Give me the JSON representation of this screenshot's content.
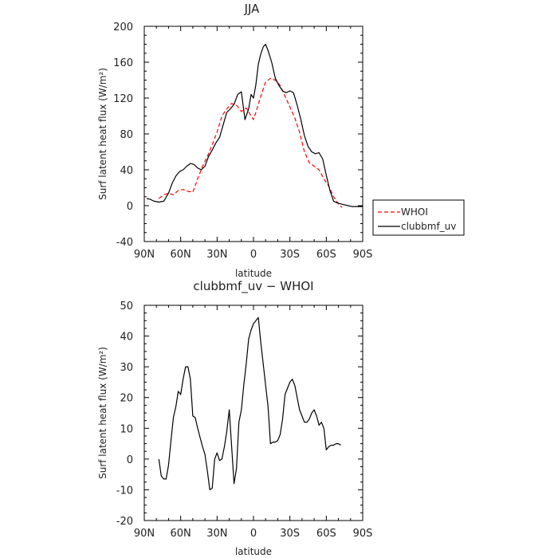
{
  "chart_data": [
    {
      "type": "line",
      "title": "JJA",
      "xlabel": "latitude",
      "ylabel": "Surf latent heat flux (W/m²)",
      "xlim": [
        90,
        -90
      ],
      "ylim": [
        -40,
        200
      ],
      "xticks": [
        "90N",
        "60N",
        "30N",
        "0",
        "30S",
        "60S",
        "90S"
      ],
      "yticks": [
        "-40",
        "0",
        "40",
        "80",
        "120",
        "160",
        "200"
      ],
      "legend": {
        "position": "right",
        "entries": [
          "WHOI",
          "clubbmf_uv"
        ]
      },
      "series": [
        {
          "name": "WHOI",
          "color": "#ff0000",
          "dash": "dashed",
          "x": [
            78,
            74,
            70,
            66,
            62,
            58,
            54,
            50,
            46,
            42,
            38,
            34,
            30,
            26,
            22,
            18,
            14,
            10,
            6,
            2,
            0,
            -2,
            -6,
            -10,
            -14,
            -18,
            -22,
            -26,
            -30,
            -34,
            -38,
            -42,
            -46,
            -50,
            -54,
            -58,
            -62,
            -66,
            -70,
            -73
          ],
          "y": [
            8,
            12,
            14,
            12,
            17,
            18,
            16,
            15,
            30,
            44,
            55,
            68,
            82,
            100,
            108,
            114,
            112,
            105,
            109,
            100,
            96,
            104,
            122,
            138,
            142,
            140,
            134,
            122,
            110,
            98,
            82,
            60,
            48,
            44,
            40,
            30,
            22,
            10,
            2,
            -2
          ]
        },
        {
          "name": "clubbmf_uv",
          "color": "#000000",
          "dash": "solid",
          "x": [
            88,
            85,
            82,
            78,
            74,
            70,
            67,
            64,
            61,
            58,
            55,
            52,
            49,
            46,
            43,
            40,
            37,
            34,
            31,
            28,
            25,
            22,
            19,
            16,
            13,
            10,
            7,
            4,
            2,
            0,
            -2,
            -4,
            -6,
            -8,
            -10,
            -12,
            -15,
            -18,
            -21,
            -24,
            -27,
            -30,
            -33,
            -36,
            -39,
            -42,
            -45,
            -48,
            -51,
            -54,
            -57,
            -60,
            -63,
            -66,
            -69,
            -72,
            -75,
            -78,
            -81,
            -84,
            -87,
            -90
          ],
          "y": [
            8,
            7,
            5,
            4,
            5,
            14,
            25,
            33,
            38,
            40,
            44,
            47,
            46,
            42,
            40,
            44,
            55,
            62,
            70,
            76,
            90,
            104,
            108,
            113,
            124,
            127,
            96,
            108,
            124,
            120,
            135,
            158,
            169,
            177,
            180,
            173,
            160,
            142,
            134,
            128,
            126,
            128,
            126,
            112,
            96,
            78,
            66,
            60,
            58,
            59,
            52,
            34,
            17,
            5,
            3,
            2,
            1,
            0,
            -1,
            -1,
            -1,
            -1
          ]
        }
      ]
    },
    {
      "type": "line",
      "title": "clubbmf_uv − WHOI",
      "xlabel": "latitude",
      "ylabel": "Surf latent heat flux (W/m²)",
      "xlim": [
        90,
        -90
      ],
      "ylim": [
        -20,
        50
      ],
      "xticks": [
        "90N",
        "60N",
        "30N",
        "0",
        "30S",
        "60S",
        "90S"
      ],
      "yticks": [
        "-20",
        "-10",
        "0",
        "10",
        "20",
        "30",
        "40",
        "50"
      ],
      "series": [
        {
          "color": "#000000",
          "dash": "solid",
          "x": [
            78,
            76,
            74,
            72,
            70,
            68,
            66,
            64,
            62,
            60,
            58,
            56,
            54,
            52,
            50,
            48,
            46,
            44,
            42,
            40,
            38,
            36,
            34,
            32,
            30,
            28,
            26,
            24,
            22,
            20,
            18,
            16,
            14,
            12,
            10,
            8,
            6,
            4,
            2,
            0,
            -2,
            -4,
            -6,
            -8,
            -10,
            -12,
            -14,
            -16,
            -18,
            -20,
            -22,
            -24,
            -26,
            -28,
            -30,
            -32,
            -34,
            -36,
            -38,
            -40,
            -42,
            -44,
            -46,
            -48,
            -50,
            -52,
            -54,
            -56,
            -58,
            -60,
            -62,
            -64,
            -66,
            -68,
            -70,
            -72
          ],
          "y": [
            0,
            -5.5,
            -6.5,
            -6.5,
            -2,
            6,
            13.5,
            17,
            22,
            21,
            26,
            30,
            30,
            26,
            14,
            13.5,
            10,
            7,
            4,
            1.5,
            -4,
            -10,
            -9.5,
            0,
            2,
            -0.5,
            0,
            4,
            9,
            16,
            4,
            -8,
            -3,
            12,
            16,
            24,
            31,
            39,
            42,
            44,
            45,
            46,
            38,
            31,
            24,
            17,
            5,
            5.5,
            5.5,
            6,
            8,
            13,
            21,
            23,
            25,
            26,
            24,
            20,
            16,
            14,
            12,
            12,
            13,
            15,
            16,
            14,
            11,
            12,
            10,
            3,
            4,
            4.5,
            4.5,
            5,
            5,
            4.5
          ]
        }
      ]
    }
  ]
}
